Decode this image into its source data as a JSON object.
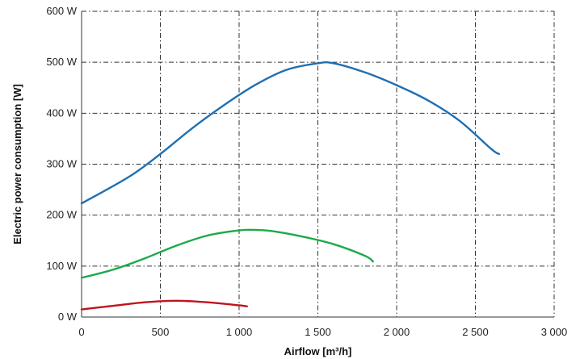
{
  "chart_data": {
    "type": "line",
    "xlabel": "Airflow [m³/h]",
    "ylabel": "Electric power consumption [W]",
    "xlim": [
      0,
      3000
    ],
    "ylim": [
      0,
      600
    ],
    "x_ticks": [
      0,
      500,
      1000,
      1500,
      2000,
      2500,
      3000
    ],
    "x_tick_labels": [
      "0",
      "500",
      "1 000",
      "1 500",
      "2 000",
      "2 500",
      "3 000"
    ],
    "y_ticks": [
      0,
      100,
      200,
      300,
      400,
      500,
      600
    ],
    "y_tick_labels": [
      "0 W",
      "100 W",
      "200 W",
      "300 W",
      "400 W",
      "500 W",
      "600 W"
    ],
    "grid": true,
    "series": [
      {
        "color": "#1f6fb2",
        "x": [
          0,
          300,
          500,
          700,
          900,
          1100,
          1300,
          1500,
          1600,
          1800,
          2000,
          2200,
          2400,
          2600,
          2650
        ],
        "y": [
          223,
          275,
          320,
          370,
          415,
          455,
          485,
          498,
          498,
          480,
          455,
          425,
          385,
          330,
          320
        ]
      },
      {
        "color": "#1aaa4a",
        "x": [
          0,
          200,
          400,
          600,
          800,
          1000,
          1100,
          1200,
          1400,
          1600,
          1800,
          1850
        ],
        "y": [
          77,
          93,
          115,
          140,
          160,
          170,
          171,
          169,
          158,
          143,
          120,
          109
        ]
      },
      {
        "color": "#c0141e",
        "x": [
          0,
          200,
          400,
          600,
          800,
          1000,
          1050
        ],
        "y": [
          15,
          22,
          29,
          32,
          29,
          23,
          21
        ]
      }
    ]
  }
}
